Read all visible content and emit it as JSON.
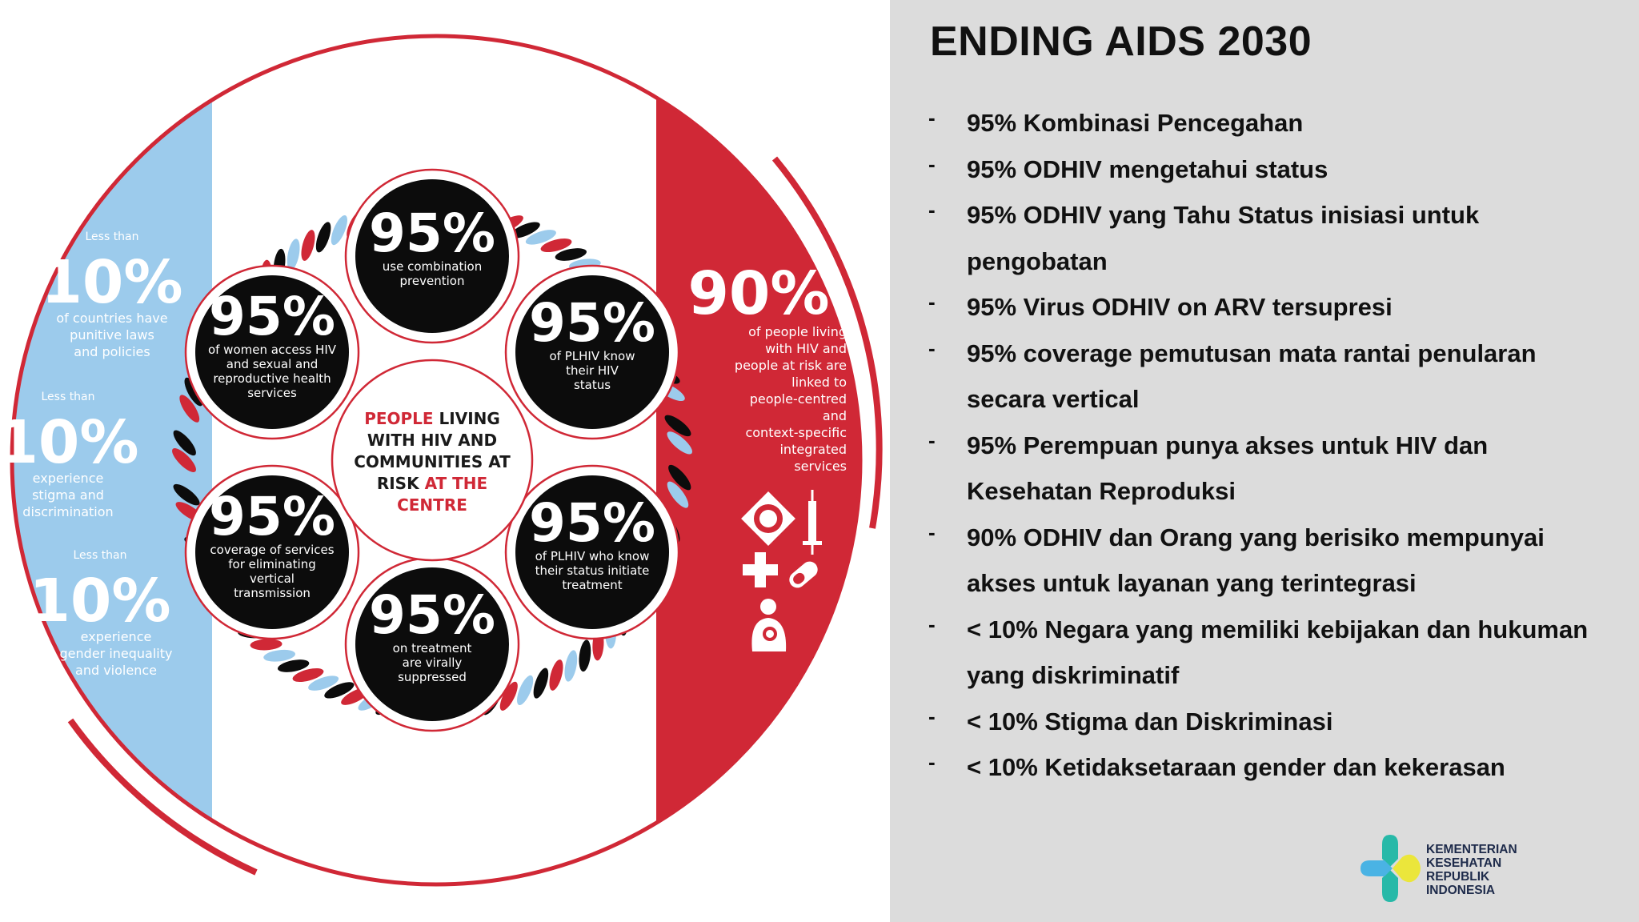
{
  "title": "ENDING AIDS 2030",
  "targets": [
    "95% Kombinasi Pencegahan",
    "95% ODHIV mengetahui status",
    "95% ODHIV yang Tahu Status inisiasi untuk pengobatan",
    "95% Virus ODHIV on ARV tersupresi",
    "95% coverage pemutusan mata rantai penularan secara vertical",
    "95% Perempuan punya akses untuk HIV dan Kesehatan Reproduksi",
    "90% ODHIV dan Orang yang berisiko mempunyai akses untuk layanan yang terintegrasi",
    "< 10% Negara yang memiliki kebijakan dan hukuman  yang diskriminatif",
    "< 10% Stigma dan Diskriminasi",
    "< 10% Ketidaksetaraan gender dan kekerasan"
  ],
  "bullet": "-",
  "logo_text": "KEMENTERIAN\nKESEHATAN\nREPUBLIK\nINDONESIA",
  "infographic": {
    "center_lines": [
      [
        {
          "t": "PEOPLE ",
          "red": true
        },
        {
          "t": "LIVING",
          "red": false
        }
      ],
      [
        {
          "t": "WITH HIV AND",
          "red": false
        }
      ],
      [
        {
          "t": "COMMUNITIES AT",
          "red": false
        }
      ],
      [
        {
          "t": "RISK ",
          "red": false
        },
        {
          "t": "AT THE",
          "red": true
        }
      ],
      [
        {
          "t": "CENTRE",
          "red": true
        }
      ]
    ],
    "circles": [
      {
        "pct": "95%",
        "lines": [
          "use combination",
          "prevention"
        ]
      },
      {
        "pct": "95%",
        "lines": [
          "of PLHIV know",
          "their HIV",
          "status"
        ]
      },
      {
        "pct": "95%",
        "lines": [
          "of PLHIV who know",
          "their status initiate",
          "treatment"
        ]
      },
      {
        "pct": "95%",
        "lines": [
          "on treatment",
          "are virally",
          "suppressed"
        ]
      },
      {
        "pct": "95%",
        "lines": [
          "coverage of services",
          "for eliminating",
          "vertical",
          "transmission"
        ]
      },
      {
        "pct": "95%",
        "lines": [
          "of women access HIV",
          "and sexual and",
          "reproductive health",
          "services"
        ]
      }
    ],
    "left_stats": [
      {
        "pre": "Less than",
        "pct": "10%",
        "lines": [
          "of countries have",
          "punitive laws",
          "and policies"
        ]
      },
      {
        "pre": "Less than",
        "pct": "10%",
        "lines": [
          "experience",
          "stigma and",
          "discrimination"
        ]
      },
      {
        "pre": "Less than",
        "pct": "10%",
        "lines": [
          "experience",
          "gender inequality",
          "and violence"
        ]
      }
    ],
    "right_stat": {
      "pct": "90%",
      "lines": [
        "of people living",
        "with HIV and",
        "people at risk are",
        "linked to",
        "people-centred",
        "and",
        "context-specific",
        "integrated",
        "services"
      ]
    },
    "service_icons": [
      "clinic-icon",
      "syringe-icon",
      "cross-icon",
      "pill-icon",
      "mother-child-icon"
    ],
    "colors": {
      "red": "#d02836",
      "blue": "#9ccbec",
      "dark": "#0c0c0c",
      "panel": "#dcdcdc",
      "logo_green": "#27b9a8",
      "logo_yellow": "#ebe63b",
      "logo_blue": "#4ab3e4"
    }
  }
}
